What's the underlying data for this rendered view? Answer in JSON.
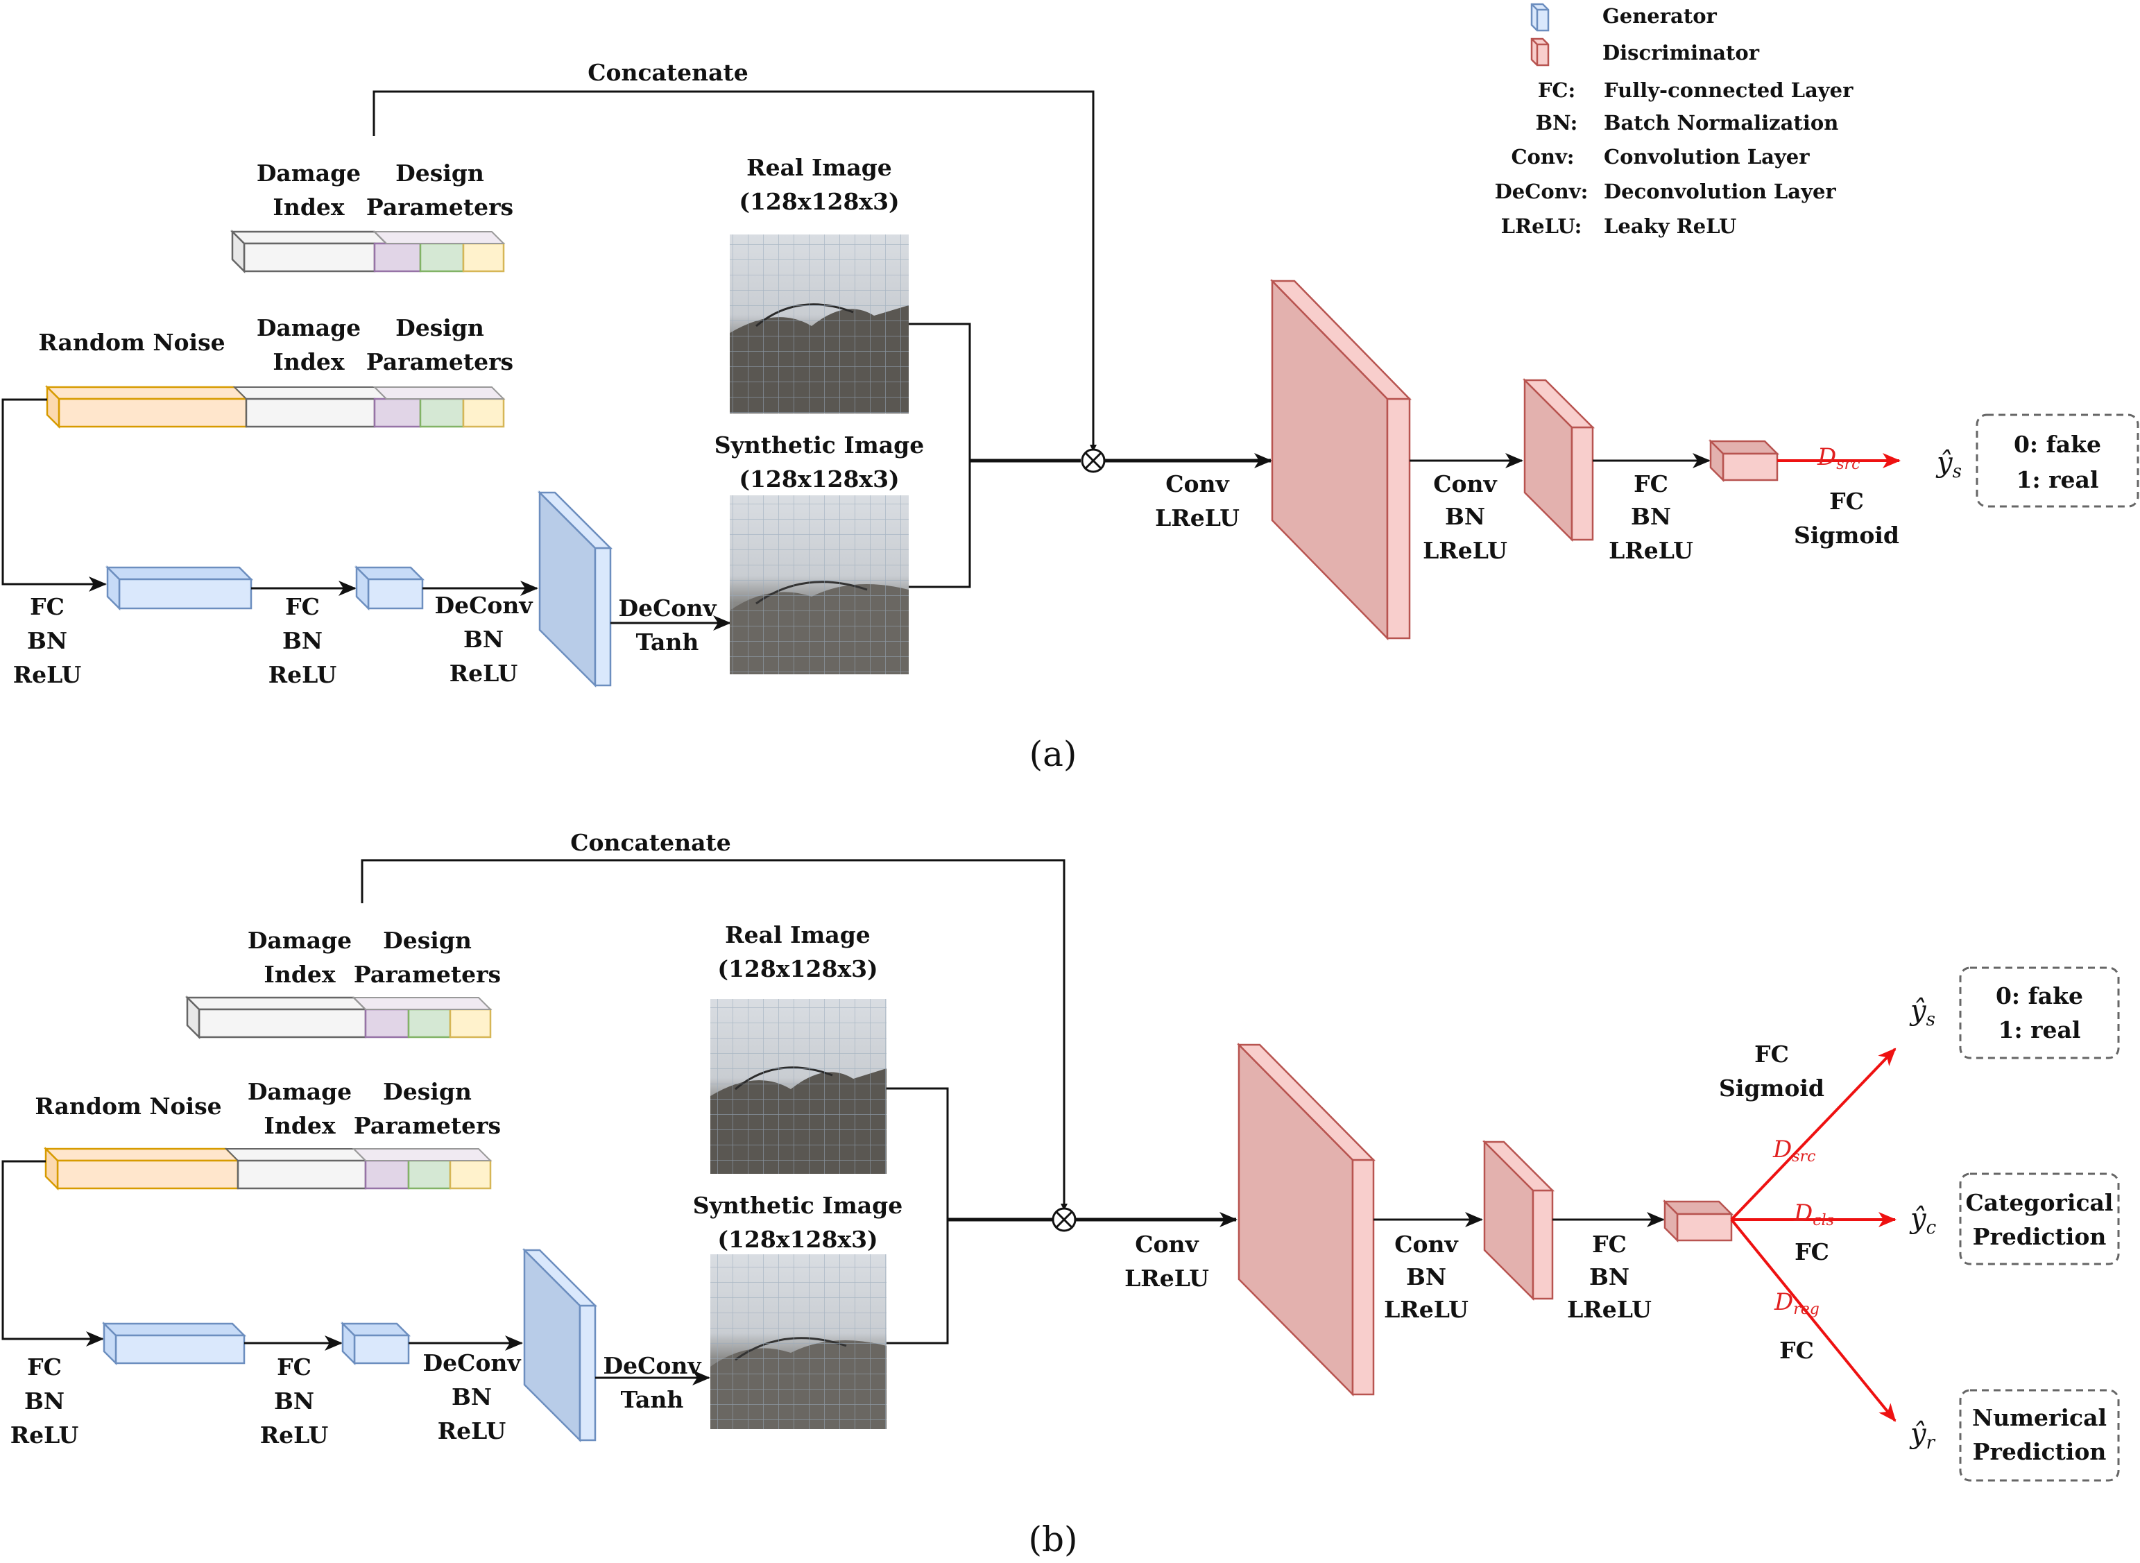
{
  "legend": {
    "generator": "Generator",
    "discriminator": "Discriminator",
    "items": [
      {
        "abbr": "FC:",
        "desc": "Fully-connected Layer"
      },
      {
        "abbr": "BN:",
        "desc": "Batch Normalization"
      },
      {
        "abbr": "Conv:",
        "desc": "Convolution Layer"
      },
      {
        "abbr": "DeConv:",
        "desc": "Deconvolution Layer"
      },
      {
        "abbr": "LReLU:",
        "desc": "Leaky ReLU"
      }
    ]
  },
  "panel_a": {
    "concatenate": "Concatenate",
    "damage_index": [
      "Damage",
      "Index"
    ],
    "design_parameters": [
      "Design",
      "Parameters"
    ],
    "random_noise": "Random Noise",
    "real_image": [
      "Real Image",
      "(128x128x3)"
    ],
    "synthetic_image": [
      "Synthetic Image",
      "(128x128x3)"
    ],
    "gen_fc1": [
      "FC",
      "BN",
      "ReLU"
    ],
    "gen_fc2": [
      "FC",
      "BN",
      "ReLU"
    ],
    "gen_deconv1": [
      "DeConv",
      "BN",
      "ReLU"
    ],
    "gen_deconv2": [
      "DeConv",
      "Tanh"
    ],
    "disc_conv1": [
      "Conv",
      "LReLU"
    ],
    "disc_conv2": [
      "Conv",
      "BN",
      "LReLU"
    ],
    "disc_fc": [
      "FC",
      "BN",
      "LReLU"
    ],
    "out_fc": [
      "FC",
      "Sigmoid"
    ],
    "d_src": "D",
    "d_src_sub": "src",
    "y_s": "ŷ",
    "y_s_sub": "s",
    "result": [
      "0: fake",
      "1: real"
    ],
    "caption": "(a)"
  },
  "panel_b": {
    "concatenate": "Concatenate",
    "damage_index": [
      "Damage",
      "Index"
    ],
    "design_parameters": [
      "Design",
      "Parameters"
    ],
    "random_noise": "Random Noise",
    "real_image": [
      "Real Image",
      "(128x128x3)"
    ],
    "synthetic_image": [
      "Synthetic Image",
      "(128x128x3)"
    ],
    "gen_fc1": [
      "FC",
      "BN",
      "ReLU"
    ],
    "gen_fc2": [
      "FC",
      "BN",
      "ReLU"
    ],
    "gen_deconv1": [
      "DeConv",
      "BN",
      "ReLU"
    ],
    "gen_deconv2": [
      "DeConv",
      "Tanh"
    ],
    "disc_conv1": [
      "Conv",
      "LReLU"
    ],
    "disc_conv2": [
      "Conv",
      "BN",
      "LReLU"
    ],
    "disc_fc": [
      "FC",
      "BN",
      "LReLU"
    ],
    "src_fc": [
      "FC",
      "Sigmoid"
    ],
    "cls_fc": "FC",
    "reg_fc": "FC",
    "d": "D",
    "d_src_sub": "src",
    "d_cls_sub": "cls",
    "d_reg_sub": "reg",
    "y": "ŷ",
    "y_s_sub": "s",
    "y_c_sub": "c",
    "y_r_sub": "r",
    "result_src": [
      "0: fake",
      "1: real"
    ],
    "result_cls": [
      "Categorical",
      "Prediction"
    ],
    "result_reg": [
      "Numerical",
      "Prediction"
    ],
    "caption": "(b)"
  },
  "colors": {
    "generator_blue": "#dae8fc",
    "generator_stroke": "#6c8ebf",
    "discriminator_red": "#f8cecc",
    "discriminator_stroke": "#b85450",
    "noise_orange": "#ffe6cc",
    "noise_stroke": "#d79b00",
    "purple": "#e1d5e7",
    "green": "#d5e8d4",
    "yellow": "#fff2cc",
    "gray": "#f5f5f5",
    "arrow_red": "#ee1111"
  }
}
